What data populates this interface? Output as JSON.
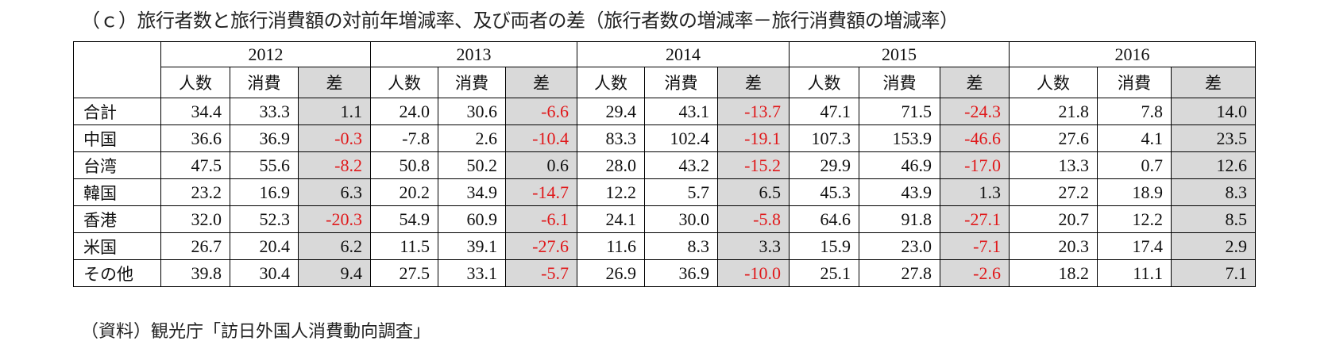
{
  "title": "（ｃ）旅行者数と旅行消費額の対前年増減率、及び両者の差（旅行者数の増減率－旅行消費額の増減率）",
  "table": {
    "years": [
      "2012",
      "2013",
      "2014",
      "2015",
      "2016"
    ],
    "sub_headers": [
      "人数",
      "消費",
      "差"
    ],
    "rows": [
      {
        "label": "合計",
        "values": [
          [
            "34.4",
            "33.3",
            "1.1"
          ],
          [
            "24.0",
            "30.6",
            "-6.6"
          ],
          [
            "29.4",
            "43.1",
            "-13.7"
          ],
          [
            "47.1",
            "71.5",
            "-24.3"
          ],
          [
            "21.8",
            "7.8",
            "14.0"
          ]
        ]
      },
      {
        "label": "中国",
        "values": [
          [
            "36.6",
            "36.9",
            "-0.3"
          ],
          [
            "-7.8",
            "2.6",
            "-10.4"
          ],
          [
            "83.3",
            "102.4",
            "-19.1"
          ],
          [
            "107.3",
            "153.9",
            "-46.6"
          ],
          [
            "27.6",
            "4.1",
            "23.5"
          ]
        ]
      },
      {
        "label": "台湾",
        "values": [
          [
            "47.5",
            "55.6",
            "-8.2"
          ],
          [
            "50.8",
            "50.2",
            "0.6"
          ],
          [
            "28.0",
            "43.2",
            "-15.2"
          ],
          [
            "29.9",
            "46.9",
            "-17.0"
          ],
          [
            "13.3",
            "0.7",
            "12.6"
          ]
        ]
      },
      {
        "label": "韓国",
        "values": [
          [
            "23.2",
            "16.9",
            "6.3"
          ],
          [
            "20.2",
            "34.9",
            "-14.7"
          ],
          [
            "12.2",
            "5.7",
            "6.5"
          ],
          [
            "45.3",
            "43.9",
            "1.3"
          ],
          [
            "27.2",
            "18.9",
            "8.3"
          ]
        ]
      },
      {
        "label": "香港",
        "values": [
          [
            "32.0",
            "52.3",
            "-20.3"
          ],
          [
            "54.9",
            "60.9",
            "-6.1"
          ],
          [
            "24.1",
            "30.0",
            "-5.8"
          ],
          [
            "64.6",
            "91.8",
            "-27.1"
          ],
          [
            "20.7",
            "12.2",
            "8.5"
          ]
        ]
      },
      {
        "label": "米国",
        "values": [
          [
            "26.7",
            "20.4",
            "6.2"
          ],
          [
            "11.5",
            "39.1",
            "-27.6"
          ],
          [
            "11.6",
            "8.3",
            "3.3"
          ],
          [
            "15.9",
            "23.0",
            "-7.1"
          ],
          [
            "20.3",
            "17.4",
            "2.9"
          ]
        ]
      },
      {
        "label": "その他",
        "values": [
          [
            "39.8",
            "30.4",
            "9.4"
          ],
          [
            "27.5",
            "33.1",
            "-5.7"
          ],
          [
            "26.9",
            "36.9",
            "-10.0"
          ],
          [
            "25.1",
            "27.8",
            "-2.6"
          ],
          [
            "18.2",
            "11.1",
            "7.1"
          ]
        ]
      }
    ]
  },
  "colors": {
    "negative": "#e0191b",
    "diff_bg": "#d9d9d9"
  },
  "source": "（資料）観光庁「訪日外国人消費動向調査」"
}
